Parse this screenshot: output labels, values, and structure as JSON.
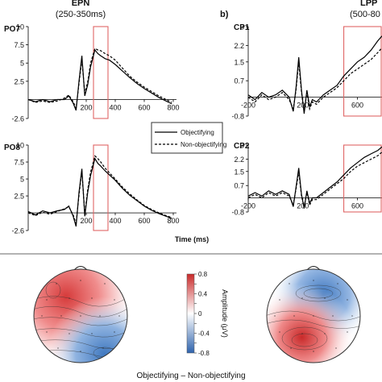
{
  "chart_data": [
    {
      "type": "line",
      "panel": "PO7",
      "component": "EPN",
      "window": "(250-350ms)",
      "xlim": [
        -200,
        800
      ],
      "ylim": [
        -2.6,
        10
      ],
      "xticks": [
        200,
        400,
        600,
        800
      ],
      "yticks": [
        10,
        7.5,
        5,
        2.5,
        -2.6
      ],
      "ytick_labels": [
        "10",
        "7.5",
        "5",
        "2.5",
        "-2.6"
      ],
      "highlight": [
        250,
        350
      ],
      "series": [
        {
          "name": "Objectifying",
          "style": "solid",
          "x": [
            -200,
            -150,
            -100,
            -50,
            0,
            50,
            80,
            110,
            130,
            150,
            170,
            190,
            210,
            230,
            260,
            280,
            300,
            330,
            360,
            400,
            450,
            500,
            550,
            600,
            650,
            700,
            750,
            790
          ],
          "y": [
            0,
            -0.3,
            0,
            -0.3,
            0,
            0,
            0.5,
            -0.5,
            -1.5,
            2.5,
            6.0,
            0.5,
            2.0,
            4.5,
            6.8,
            6.3,
            6.0,
            5.6,
            5.4,
            4.8,
            3.9,
            3.0,
            2.2,
            1.5,
            0.9,
            0.3,
            -0.2,
            -0.6
          ]
        },
        {
          "name": "Non-objectifying",
          "style": "dashed",
          "x": [
            -200,
            -150,
            -100,
            -50,
            0,
            50,
            80,
            110,
            130,
            150,
            170,
            190,
            210,
            230,
            260,
            280,
            300,
            330,
            360,
            400,
            450,
            500,
            550,
            600,
            650,
            700,
            750,
            790
          ],
          "y": [
            0,
            -0.4,
            -0.2,
            -0.4,
            -0.2,
            0.2,
            0.6,
            -0.3,
            -1.2,
            2.2,
            5.5,
            0.8,
            2.4,
            5.0,
            7.0,
            6.8,
            6.7,
            6.3,
            6.0,
            5.4,
            4.3,
            3.2,
            2.4,
            1.7,
            1.1,
            0.5,
            0.0,
            -0.4
          ]
        }
      ]
    },
    {
      "type": "line",
      "panel": "PO8",
      "xlim": [
        -200,
        800
      ],
      "ylim": [
        -2.6,
        10
      ],
      "xticks": [
        200,
        400,
        600,
        800
      ],
      "yticks": [
        10,
        7.5,
        5,
        2.5,
        -2.6
      ],
      "ytick_labels": [
        "10",
        "7.5",
        "5",
        "2.5",
        "-2.6"
      ],
      "highlight": [
        250,
        350
      ],
      "xlabel": "Time (ms)",
      "series": [
        {
          "name": "Objectifying",
          "style": "solid",
          "x": [
            -200,
            -150,
            -100,
            -50,
            0,
            50,
            80,
            110,
            130,
            150,
            170,
            190,
            210,
            230,
            260,
            280,
            300,
            330,
            360,
            400,
            450,
            500,
            550,
            600,
            650,
            700,
            750,
            790
          ],
          "y": [
            0.2,
            -0.3,
            0.3,
            0,
            0.3,
            0.5,
            1.0,
            -0.5,
            -2.0,
            3.0,
            6.5,
            -0.5,
            3.0,
            5.5,
            8.0,
            7.3,
            6.9,
            6.2,
            5.6,
            4.8,
            3.6,
            2.6,
            1.8,
            1.0,
            0.4,
            -0.1,
            -0.5,
            -0.8
          ]
        },
        {
          "name": "Non-objectifying",
          "style": "dashed",
          "x": [
            -200,
            -150,
            -100,
            -50,
            0,
            50,
            80,
            110,
            130,
            150,
            170,
            190,
            210,
            230,
            260,
            280,
            300,
            330,
            360,
            400,
            450,
            500,
            550,
            600,
            650,
            700,
            750,
            790
          ],
          "y": [
            0,
            -0.4,
            0.1,
            -0.2,
            0.2,
            0.6,
            0.9,
            -0.3,
            -1.6,
            2.6,
            6.2,
            -0.2,
            3.4,
            6.0,
            8.4,
            8.0,
            7.5,
            6.6,
            5.9,
            5.0,
            3.8,
            2.8,
            1.9,
            1.1,
            0.5,
            0.0,
            -0.4,
            -0.7
          ]
        }
      ]
    },
    {
      "type": "line",
      "panel": "CP1",
      "panel_letter": "b)",
      "component": "LPP",
      "window": "(500-80",
      "xlim": [
        -200,
        780
      ],
      "ylim": [
        -0.8,
        3
      ],
      "xticks": [
        -200,
        200,
        600
      ],
      "yticks": [
        3,
        2.2,
        1.5,
        0.7,
        -0.8
      ],
      "ytick_labels": [
        "3",
        "2.2",
        "1.5",
        "0.7",
        "-0.8"
      ],
      "highlight": [
        500,
        800
      ],
      "series": [
        {
          "name": "Objectifying",
          "style": "solid",
          "x": [
            -200,
            -150,
            -100,
            -50,
            0,
            50,
            100,
            130,
            150,
            170,
            190,
            210,
            230,
            250,
            270,
            300,
            350,
            400,
            450,
            500,
            550,
            600,
            650,
            700,
            750,
            780
          ],
          "y": [
            0.1,
            -0.1,
            0.2,
            0.0,
            0.1,
            0.3,
            0.0,
            -0.6,
            0.4,
            1.7,
            0.3,
            -0.7,
            0.3,
            -0.4,
            -0.1,
            -0.2,
            0.1,
            0.3,
            0.5,
            0.9,
            1.2,
            1.5,
            1.7,
            2.0,
            2.4,
            2.6
          ]
        },
        {
          "name": "Non-objectifying",
          "style": "dashed",
          "x": [
            -200,
            -150,
            -100,
            -50,
            0,
            50,
            100,
            130,
            150,
            170,
            190,
            210,
            230,
            250,
            270,
            300,
            350,
            400,
            450,
            500,
            550,
            600,
            650,
            700,
            750,
            780
          ],
          "y": [
            0.0,
            -0.2,
            0.1,
            -0.1,
            0.0,
            0.2,
            -0.1,
            -0.5,
            0.3,
            1.5,
            0.2,
            -0.6,
            0.2,
            -0.5,
            -0.2,
            -0.3,
            0.0,
            0.2,
            0.4,
            0.7,
            1.0,
            1.2,
            1.4,
            1.6,
            1.9,
            2.1
          ]
        }
      ]
    },
    {
      "type": "line",
      "panel": "CP2",
      "xlim": [
        -200,
        780
      ],
      "ylim": [
        -0.8,
        3
      ],
      "xticks": [
        -200,
        200,
        600
      ],
      "yticks": [
        3,
        2.2,
        1.5,
        0.7,
        -0.8
      ],
      "ytick_labels": [
        "3",
        "2.2",
        "1.5",
        "0.7",
        "-0.8"
      ],
      "highlight": [
        500,
        800
      ],
      "series": [
        {
          "name": "Objectifying",
          "style": "solid",
          "x": [
            -200,
            -150,
            -100,
            -50,
            0,
            50,
            100,
            130,
            150,
            170,
            190,
            210,
            230,
            250,
            270,
            300,
            350,
            400,
            450,
            500,
            550,
            600,
            650,
            700,
            750,
            780
          ],
          "y": [
            0.1,
            0.3,
            0.1,
            0.4,
            0.2,
            0.4,
            0.2,
            -0.5,
            0.6,
            1.7,
            0.2,
            -0.6,
            0.4,
            -0.3,
            0.0,
            0.0,
            0.3,
            0.6,
            0.9,
            1.3,
            1.7,
            2.0,
            2.3,
            2.5,
            2.7,
            2.9
          ]
        },
        {
          "name": "Non-objectifying",
          "style": "dashed",
          "x": [
            -200,
            -150,
            -100,
            -50,
            0,
            50,
            100,
            130,
            150,
            170,
            190,
            210,
            230,
            250,
            270,
            300,
            350,
            400,
            450,
            500,
            550,
            600,
            650,
            700,
            750,
            780
          ],
          "y": [
            0.0,
            0.2,
            0.0,
            0.3,
            0.1,
            0.3,
            0.1,
            -0.4,
            0.5,
            1.5,
            0.1,
            -0.5,
            0.3,
            -0.4,
            -0.1,
            -0.1,
            0.2,
            0.5,
            0.8,
            1.1,
            1.5,
            1.8,
            2.0,
            2.2,
            2.4,
            2.6
          ]
        }
      ]
    },
    {
      "type": "heatmap",
      "panel": "topomap-epn",
      "colorbar_ylabel": "Amplitude (μV)",
      "colorbar_ticks": [
        0.8,
        0.6,
        0.4,
        0.2,
        0,
        -0.2,
        -0.4,
        -0.6,
        -0.8
      ],
      "clim": [
        -0.8,
        0.8
      ],
      "caption": "Objectifying – Non-objectifying"
    },
    {
      "type": "heatmap",
      "panel": "topomap-lpp",
      "clim": [
        -0.8,
        0.8
      ]
    }
  ],
  "legend": {
    "items": [
      {
        "label": "Objectifying",
        "style": "solid"
      },
      {
        "label": "Non-objectifying",
        "style": "dashed"
      }
    ]
  },
  "colors": {
    "highlight": "#e06666",
    "positive": "#d63b3b",
    "negative": "#3f78c0",
    "trace": "#000000"
  }
}
